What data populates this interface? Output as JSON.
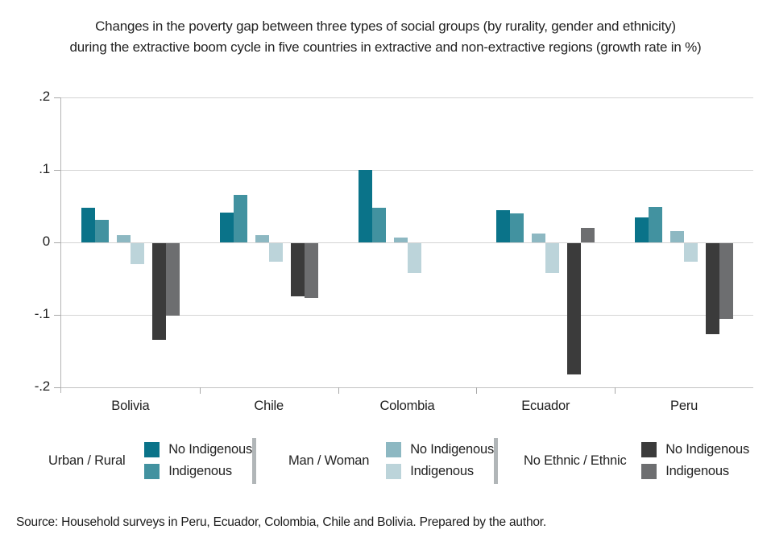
{
  "title": {
    "line1": "Changes in the poverty gap between three types of social groups (by rurality, gender and ethnicity)",
    "line2": "during the extractive boom cycle in five countries in extractive and non-extractive regions (growth rate in %)"
  },
  "chart_data": {
    "type": "bar",
    "categories": [
      "Bolivia",
      "Chile",
      "Colombia",
      "Ecuador",
      "Peru"
    ],
    "series": [
      {
        "name": "Urban / Rural - No Indigenous",
        "color": "#0a7389",
        "values": [
          0.048,
          0.041,
          0.1,
          0.044,
          0.034
        ]
      },
      {
        "name": "Urban / Rural - Indigenous",
        "color": "#4292a0",
        "values": [
          0.031,
          0.066,
          0.048,
          0.04,
          0.049
        ]
      },
      {
        "name": "Man / Woman - No Indigenous",
        "color": "#8db8c2",
        "values": [
          0.01,
          0.01,
          0.007,
          0.012,
          0.016
        ]
      },
      {
        "name": "Man / Woman - Indigenous",
        "color": "#bcd4da",
        "values": [
          -0.029,
          -0.026,
          -0.041,
          -0.041,
          -0.026
        ]
      },
      {
        "name": "No Ethnic / Ethnic - No Indigenous",
        "color": "#3b3b3b",
        "values": [
          -0.133,
          -0.073,
          null,
          -0.181,
          -0.125
        ]
      },
      {
        "name": "No Ethnic / Ethnic - Indigenous",
        "color": "#6d6e70",
        "values": [
          -0.1,
          -0.076,
          null,
          0.02,
          -0.104
        ]
      }
    ],
    "ylim": [
      -0.2,
      0.2
    ],
    "y_ticks": [
      ".2",
      ".1",
      "0",
      "-.1",
      "-.2"
    ],
    "grid": true,
    "legend_position": "bottom",
    "title": "Changes in the poverty gap between three types of social groups (by rurality, gender and ethnicity) during the extractive boom cycle in five countries in extractive and non-extractive regions (growth rate in %)",
    "xlabel": "",
    "ylabel": ""
  },
  "legend": {
    "groups": [
      {
        "label": "Urban / Rural",
        "items": [
          {
            "label": "No Indigenous",
            "color": "#0a7389"
          },
          {
            "label": "Indigenous",
            "color": "#4292a0"
          }
        ]
      },
      {
        "label": "Man / Woman",
        "items": [
          {
            "label": "No Indigenous",
            "color": "#8db8c2"
          },
          {
            "label": "Indigenous",
            "color": "#bcd4da"
          }
        ]
      },
      {
        "label": "No Ethnic / Ethnic",
        "items": [
          {
            "label": "No Indigenous",
            "color": "#3b3b3b"
          },
          {
            "label": "Indigenous",
            "color": "#6d6e70"
          }
        ]
      }
    ]
  },
  "source": "Source: Household surveys in Peru, Ecuador, Colombia, Chile and Bolivia. Prepared by the author."
}
